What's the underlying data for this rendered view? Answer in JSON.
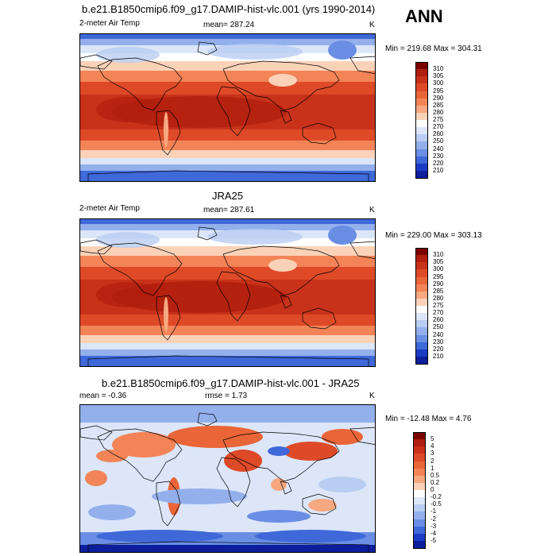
{
  "header": {
    "ann_label": "ANN"
  },
  "panels": [
    {
      "title": "b.e21.B1850cmip6.f09_g17.DAMIP-hist-vlc.001 (yrs 1990-2014)",
      "left_label": "2-meter Air Temp",
      "center_label": "mean= 287.24",
      "unit": "K",
      "minmax": "Min = 219.68 Max = 304.31",
      "colorbar": {
        "labels": [
          "310",
          "305",
          "300",
          "295",
          "290",
          "285",
          "280",
          "275",
          "270",
          "260",
          "250",
          "240",
          "230",
          "220",
          "210"
        ],
        "colors": [
          "#7a0000",
          "#b01e0e",
          "#c8321a",
          "#de4a28",
          "#ea6538",
          "#f28458",
          "#f7a880",
          "#fbd2b8",
          "#ffffff",
          "#dce6f8",
          "#b9cdf2",
          "#93b0ec",
          "#6a8ee4",
          "#3f68d8",
          "#1a3cc4",
          "#0c1e9c"
        ]
      }
    },
    {
      "title": "JRA25",
      "left_label": "2-meter Air Temp",
      "center_label": "mean= 287.61",
      "unit": "K",
      "minmax": "Min = 229.00 Max = 303.13",
      "colorbar": {
        "labels": [
          "310",
          "305",
          "300",
          "295",
          "290",
          "285",
          "280",
          "275",
          "270",
          "260",
          "250",
          "240",
          "230",
          "220",
          "210"
        ],
        "colors": [
          "#7a0000",
          "#b01e0e",
          "#c8321a",
          "#de4a28",
          "#ea6538",
          "#f28458",
          "#f7a880",
          "#fbd2b8",
          "#ffffff",
          "#dce6f8",
          "#b9cdf2",
          "#93b0ec",
          "#6a8ee4",
          "#3f68d8",
          "#1a3cc4",
          "#0c1e9c"
        ]
      }
    },
    {
      "title": "b.e21.B1850cmip6.f09_g17.DAMIP-hist-vlc.001 - JRA25",
      "left_label": "mean = -0.36",
      "center_label": "rmse = 1.73",
      "unit": "K",
      "minmax": "Min = -12.48 Max = 4.76",
      "colorbar": {
        "labels": [
          "5",
          "4",
          "3",
          "2",
          "1",
          "0.5",
          "0.2",
          "0",
          "-0.2",
          "-0.5",
          "-1",
          "-2",
          "-3",
          "-4",
          "-5"
        ],
        "colors": [
          "#7a0000",
          "#b01e0e",
          "#c8321a",
          "#de4a28",
          "#ea6538",
          "#f28458",
          "#f7a880",
          "#fbd2b8",
          "#ffffff",
          "#dce6f8",
          "#b9cdf2",
          "#93b0ec",
          "#6a8ee4",
          "#3f68d8",
          "#1a3cc4",
          "#0c1e9c"
        ]
      }
    }
  ],
  "chart_data": [
    {
      "type": "heatmap",
      "title": "b.e21.B1850cmip6.f09_g17.DAMIP-hist-vlc.001 (yrs 1990-2014)",
      "variable": "2-meter Air Temp",
      "units": "K",
      "mean": 287.24,
      "min": 219.68,
      "max": 304.31,
      "contour_levels": [
        210,
        220,
        230,
        240,
        250,
        260,
        270,
        275,
        280,
        285,
        290,
        295,
        300,
        305,
        310
      ]
    },
    {
      "type": "heatmap",
      "title": "JRA25",
      "variable": "2-meter Air Temp",
      "units": "K",
      "mean": 287.61,
      "min": 229.0,
      "max": 303.13,
      "contour_levels": [
        210,
        220,
        230,
        240,
        250,
        260,
        270,
        275,
        280,
        285,
        290,
        295,
        300,
        305,
        310
      ]
    },
    {
      "type": "heatmap",
      "title": "b.e21.B1850cmip6.f09_g17.DAMIP-hist-vlc.001 - JRA25",
      "units": "K",
      "mean": -0.36,
      "rmse": 1.73,
      "min": -12.48,
      "max": 4.76,
      "contour_levels": [
        -5,
        -4,
        -3,
        -2,
        -1,
        -0.5,
        -0.2,
        0,
        0.2,
        0.5,
        1,
        2,
        3,
        4,
        5
      ]
    }
  ]
}
